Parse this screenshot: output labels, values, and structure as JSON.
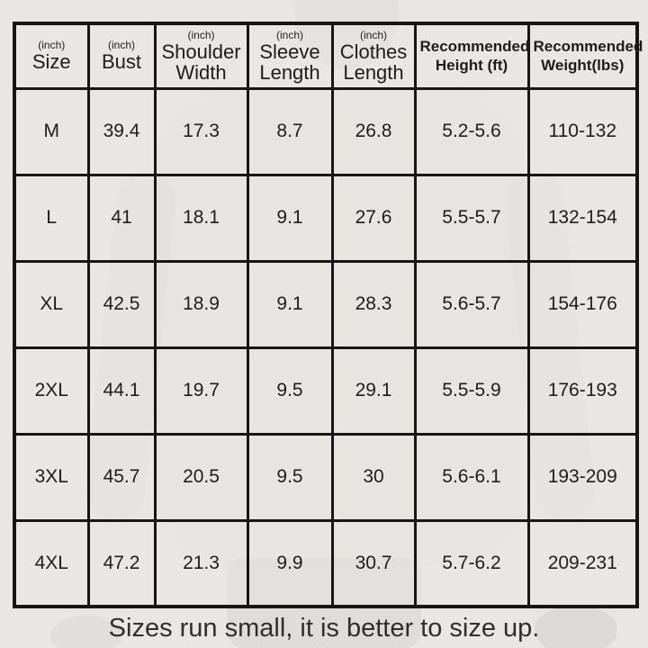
{
  "colors": {
    "page_background": "#e8e7e5",
    "table_border": "#161616",
    "cell_text": "#1d1d1d",
    "caption_text": "#2f2f2f"
  },
  "chart_data": {
    "type": "table",
    "title": "Garment size chart",
    "columns": [
      {
        "unit": "(inch)",
        "label": "Size"
      },
      {
        "unit": "(inch)",
        "label": "Bust"
      },
      {
        "unit": "(inch)",
        "label": "Shoulder Width"
      },
      {
        "unit": "(inch)",
        "label": "Sleeve Length"
      },
      {
        "unit": "(inch)",
        "label": "Clothes Length"
      },
      {
        "unit": "",
        "label": "Recommended Height (ft)"
      },
      {
        "unit": "",
        "label": "Recommended Weight(lbs)"
      }
    ],
    "rows": [
      [
        "M",
        "39.4",
        "17.3",
        "8.7",
        "26.8",
        "5.2-5.6",
        "110-132"
      ],
      [
        "L",
        "41",
        "18.1",
        "9.1",
        "27.6",
        "5.5-5.7",
        "132-154"
      ],
      [
        "XL",
        "42.5",
        "18.9",
        "9.1",
        "28.3",
        "5.6-5.7",
        "154-176"
      ],
      [
        "2XL",
        "44.1",
        "19.7",
        "9.5",
        "29.1",
        "5.5-5.9",
        "176-193"
      ],
      [
        "3XL",
        "45.7",
        "20.5",
        "9.5",
        "30",
        "5.6-6.1",
        "193-209"
      ],
      [
        "4XL",
        "47.2",
        "21.3",
        "9.9",
        "30.7",
        "5.7-6.2",
        "209-231"
      ]
    ],
    "caption": "Sizes run small, it is better to size up."
  }
}
